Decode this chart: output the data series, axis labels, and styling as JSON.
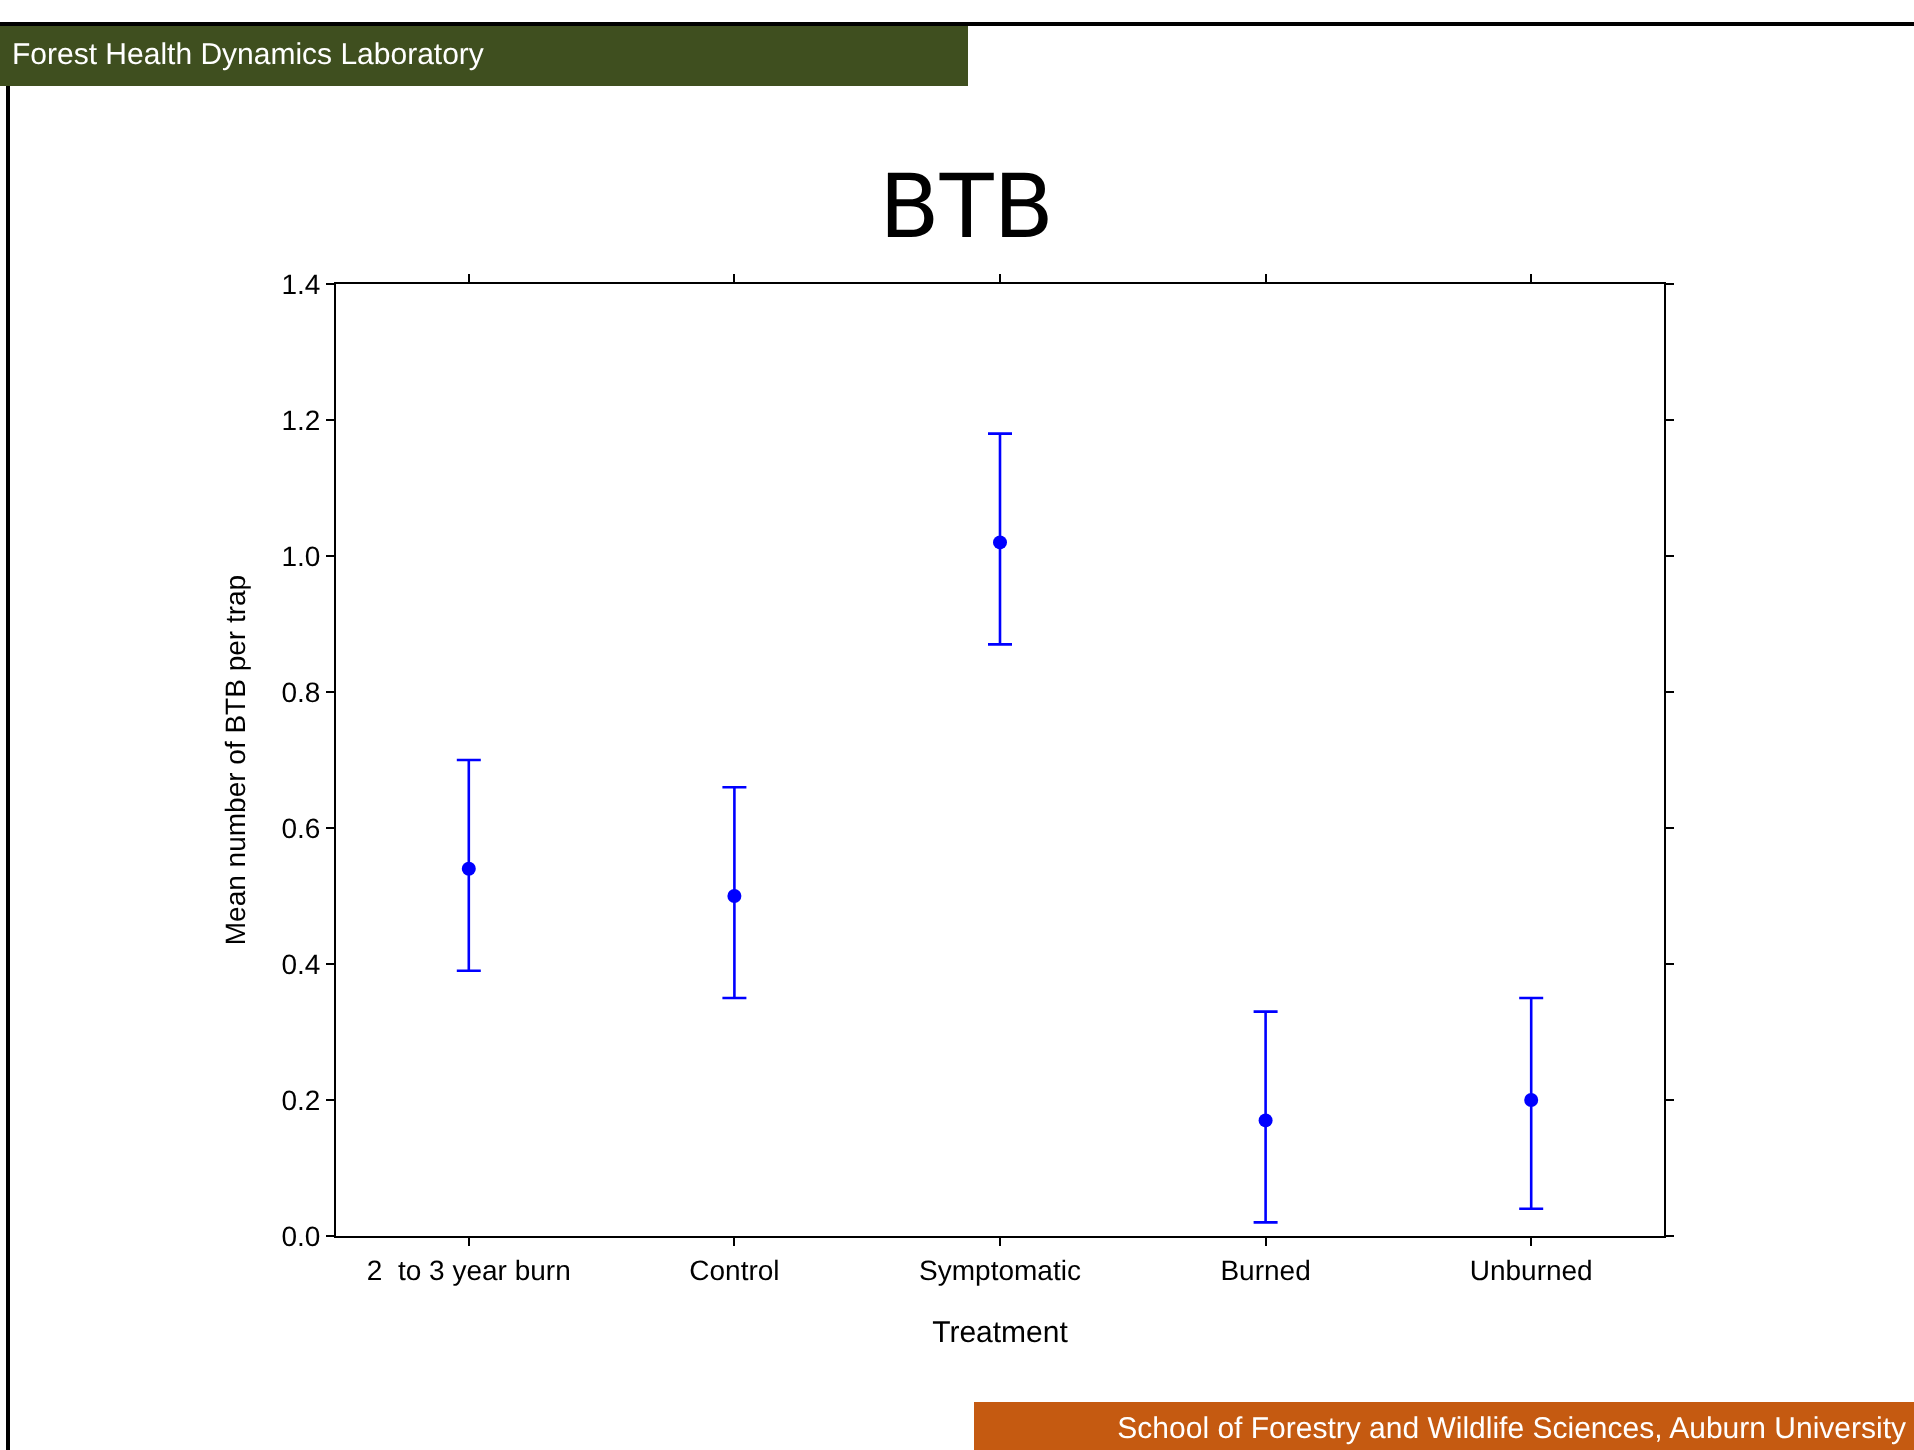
{
  "chart_data": {
    "type": "scatter",
    "title": "BTB",
    "xlabel": "Treatment",
    "ylabel": "Mean number of BTB per trap",
    "annotations": [
      "Forest Health Dynamics Laboratory",
      "School of Forestry and Wildlife Sciences, Auburn University"
    ],
    "categories": [
      "2  to 3 year burn",
      "Control",
      "Symptomatic",
      "Burned",
      "Unburned"
    ],
    "series": [
      {
        "color": "#0000ff",
        "values": [
          0.54,
          0.5,
          1.02,
          0.17,
          0.2
        ],
        "errors": [
          [
            0.39,
            0.7
          ],
          [
            0.35,
            0.66
          ],
          [
            0.87,
            1.18
          ],
          [
            0.02,
            0.33
          ],
          [
            0.04,
            0.35
          ]
        ]
      }
    ],
    "ylim": [
      0,
      1.4
    ],
    "yticks": [
      {
        "value": 0,
        "label": "0.0"
      },
      {
        "value": 0.2,
        "label": "0.2"
      },
      {
        "value": 0.4,
        "label": "0.4"
      },
      {
        "value": 0.6,
        "label": "0.6"
      },
      {
        "value": 0.8,
        "label": "0.8"
      },
      {
        "value": 1.0,
        "label": "1.0"
      },
      {
        "value": 1.2,
        "label": "1.2"
      },
      {
        "value": 1.4,
        "label": "1.4"
      }
    ],
    "grid": false,
    "marker": "circle"
  }
}
